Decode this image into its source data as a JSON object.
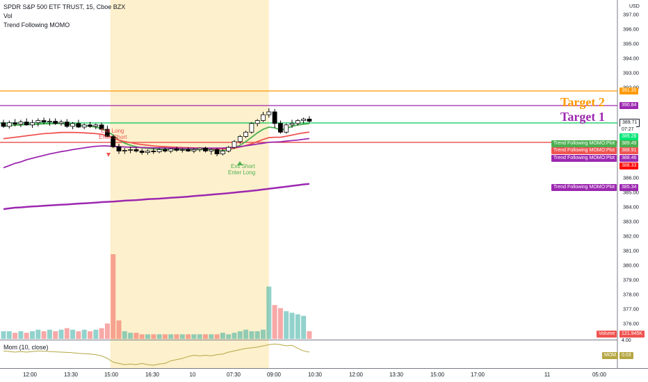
{
  "header": {
    "title": "SPDR S&P 500 ETF TRUST, 15, Cboe BZX",
    "vol": "Vol",
    "indicator": "Trend Following MOMO"
  },
  "mom_panel": {
    "label": "Mom (10, close)"
  },
  "currency": "USD",
  "targets": {
    "target2": "Target 2",
    "target1": "Target 1"
  },
  "annotations": {
    "exit_long": "Exit Long",
    "enter_short": "Enter Short",
    "exit_short": "Exit Short",
    "enter_long": "Enter Long"
  },
  "x_labels": [
    "12:00",
    "13:30",
    "15:00",
    "16:30",
    "10",
    "07:30",
    "09:00",
    "10:30",
    "12:00",
    "13:30",
    "15:00",
    "17:00",
    "11",
    "05:00"
  ],
  "y_labels": [
    "397.00",
    "396.00",
    "395.00",
    "394.00",
    "393.00",
    "392.00",
    "386.00",
    "385.00",
    "384.00",
    "383.00",
    "382.00",
    "381.00",
    "380.00",
    "379.00",
    "378.00",
    "377.00",
    "376.00"
  ],
  "price_tags": {
    "orange_line": "391.35",
    "purple_line": "390.84",
    "current": "389.71",
    "countdown": "07:27",
    "green_level": "389.28",
    "red_line": "388.33",
    "mom_lower": "4.00"
  },
  "plot_tags": [
    {
      "label": "Trend Following MOMO:Plot",
      "value": "389.49",
      "color": "#4caf50"
    },
    {
      "label": "Trend Following MOMO:Plot",
      "value": "388.91",
      "color": "#ef5350"
    },
    {
      "label": "Trend Following MOMO:Plot",
      "value": "388.46",
      "color": "#9c27b0"
    },
    {
      "label": "Trend Following MOMO:Plot",
      "value": "385.34",
      "color": "#9c27b0"
    }
  ],
  "volume_tag": {
    "label": "Volume",
    "value": "121.945K"
  },
  "mom_tag": {
    "label": "MOM",
    "value": "0.03"
  },
  "colors": {
    "up": "#26a69a",
    "down": "#ef5350",
    "session_bg": "#fdf0cc",
    "green_line": "#4caf50",
    "red_line": "#ef5350",
    "purple_line": "#9c27b0",
    "orange_line": "#ff9800",
    "mom_line": "#b5a642"
  },
  "chart_data": {
    "type": "candlestick",
    "title": "SPDR S&P 500 ETF TRUST, 15, Cboe BZX",
    "ylim": [
      375.6,
      397.6
    ],
    "y_ticks": [
      397,
      396,
      395,
      394,
      393,
      392,
      386,
      385,
      384,
      383,
      382,
      381,
      380,
      379,
      378,
      377,
      376
    ],
    "session_highlight": {
      "from_bar": 19,
      "to_bar": 46
    },
    "candles": [
      {
        "o": 389.55,
        "h": 389.75,
        "l": 389.2,
        "c": 389.3
      },
      {
        "o": 389.3,
        "h": 389.7,
        "l": 389.15,
        "c": 389.55
      },
      {
        "o": 389.55,
        "h": 389.8,
        "l": 389.3,
        "c": 389.45
      },
      {
        "o": 389.45,
        "h": 389.75,
        "l": 389.25,
        "c": 389.6
      },
      {
        "o": 389.6,
        "h": 389.85,
        "l": 389.35,
        "c": 389.4
      },
      {
        "o": 389.4,
        "h": 389.75,
        "l": 389.2,
        "c": 389.55
      },
      {
        "o": 389.55,
        "h": 389.85,
        "l": 389.3,
        "c": 389.7
      },
      {
        "o": 389.7,
        "h": 389.9,
        "l": 389.45,
        "c": 389.6
      },
      {
        "o": 389.6,
        "h": 389.85,
        "l": 389.35,
        "c": 389.65
      },
      {
        "o": 389.65,
        "h": 389.85,
        "l": 389.4,
        "c": 389.5
      },
      {
        "o": 389.5,
        "h": 389.75,
        "l": 389.35,
        "c": 389.6
      },
      {
        "o": 389.6,
        "h": 389.8,
        "l": 389.2,
        "c": 389.3
      },
      {
        "o": 389.3,
        "h": 389.6,
        "l": 389.1,
        "c": 389.5
      },
      {
        "o": 389.5,
        "h": 389.75,
        "l": 389.2,
        "c": 389.25
      },
      {
        "o": 389.25,
        "h": 389.5,
        "l": 389.1,
        "c": 389.4
      },
      {
        "o": 389.4,
        "h": 389.6,
        "l": 389.2,
        "c": 389.3
      },
      {
        "o": 389.3,
        "h": 389.5,
        "l": 389.1,
        "c": 389.4
      },
      {
        "o": 389.4,
        "h": 389.55,
        "l": 389.0,
        "c": 389.1
      },
      {
        "o": 389.1,
        "h": 389.35,
        "l": 388.55,
        "c": 388.6
      },
      {
        "o": 388.6,
        "h": 388.7,
        "l": 387.8,
        "c": 387.9
      },
      {
        "o": 387.9,
        "h": 388.1,
        "l": 387.4,
        "c": 387.6
      },
      {
        "o": 387.6,
        "h": 387.8,
        "l": 387.4,
        "c": 387.65
      },
      {
        "o": 387.65,
        "h": 387.9,
        "l": 387.45,
        "c": 387.7
      },
      {
        "o": 387.7,
        "h": 387.85,
        "l": 387.5,
        "c": 387.6
      },
      {
        "o": 387.6,
        "h": 387.75,
        "l": 387.35,
        "c": 387.5
      },
      {
        "o": 387.5,
        "h": 387.7,
        "l": 387.35,
        "c": 387.6
      },
      {
        "o": 387.6,
        "h": 387.8,
        "l": 387.4,
        "c": 387.55
      },
      {
        "o": 387.55,
        "h": 387.8,
        "l": 387.45,
        "c": 387.7
      },
      {
        "o": 387.7,
        "h": 387.85,
        "l": 387.5,
        "c": 387.6
      },
      {
        "o": 387.6,
        "h": 387.8,
        "l": 387.45,
        "c": 387.75
      },
      {
        "o": 387.75,
        "h": 387.9,
        "l": 387.55,
        "c": 387.65
      },
      {
        "o": 387.65,
        "h": 387.8,
        "l": 387.5,
        "c": 387.7
      },
      {
        "o": 387.7,
        "h": 387.85,
        "l": 387.55,
        "c": 387.6
      },
      {
        "o": 387.6,
        "h": 387.8,
        "l": 387.45,
        "c": 387.7
      },
      {
        "o": 387.7,
        "h": 387.85,
        "l": 387.55,
        "c": 387.8
      },
      {
        "o": 387.8,
        "h": 387.9,
        "l": 387.5,
        "c": 387.6
      },
      {
        "o": 387.6,
        "h": 387.75,
        "l": 387.35,
        "c": 387.7
      },
      {
        "o": 387.7,
        "h": 387.8,
        "l": 387.25,
        "c": 387.4
      },
      {
        "o": 387.4,
        "h": 387.75,
        "l": 387.3,
        "c": 387.6
      },
      {
        "o": 387.6,
        "h": 387.95,
        "l": 387.5,
        "c": 387.85
      },
      {
        "o": 387.85,
        "h": 388.35,
        "l": 387.75,
        "c": 388.25
      },
      {
        "o": 388.25,
        "h": 388.7,
        "l": 388.1,
        "c": 388.6
      },
      {
        "o": 388.6,
        "h": 389.0,
        "l": 388.5,
        "c": 388.9
      },
      {
        "o": 388.9,
        "h": 389.6,
        "l": 388.8,
        "c": 389.5
      },
      {
        "o": 389.5,
        "h": 389.8,
        "l": 389.3,
        "c": 389.7
      },
      {
        "o": 389.7,
        "h": 390.3,
        "l": 389.6,
        "c": 390.1
      },
      {
        "o": 390.1,
        "h": 390.55,
        "l": 389.9,
        "c": 390.3
      },
      {
        "o": 390.3,
        "h": 390.5,
        "l": 389.2,
        "c": 389.5
      },
      {
        "o": 389.5,
        "h": 389.7,
        "l": 388.8,
        "c": 388.9
      },
      {
        "o": 388.9,
        "h": 389.5,
        "l": 388.8,
        "c": 389.4
      },
      {
        "o": 389.4,
        "h": 389.75,
        "l": 389.2,
        "c": 389.5
      },
      {
        "o": 389.5,
        "h": 389.8,
        "l": 389.35,
        "c": 389.7
      },
      {
        "o": 389.7,
        "h": 389.9,
        "l": 389.5,
        "c": 389.8
      },
      {
        "o": 389.8,
        "h": 390.0,
        "l": 389.55,
        "c": 389.65
      }
    ],
    "volume": [
      5,
      5,
      4,
      5,
      4,
      5,
      6,
      5,
      6,
      5,
      6,
      7,
      6,
      5,
      6,
      5,
      6,
      7,
      10,
      55,
      12,
      5,
      4,
      4,
      3,
      3,
      3,
      3,
      3,
      3,
      3,
      3,
      3,
      3,
      3,
      3,
      3,
      3,
      4,
      3,
      4,
      5,
      6,
      5,
      5,
      6,
      34,
      22,
      20,
      18,
      17,
      16,
      15,
      5
    ],
    "volume_up": [
      true,
      true,
      false,
      true,
      false,
      true,
      true,
      false,
      true,
      false,
      true,
      false,
      true,
      false,
      true,
      false,
      true,
      false,
      false,
      false,
      false,
      true,
      true,
      false,
      false,
      true,
      false,
      true,
      false,
      true,
      false,
      true,
      false,
      true,
      true,
      false,
      true,
      false,
      true,
      true,
      true,
      true,
      true,
      true,
      true,
      true,
      true,
      false,
      false,
      true,
      true,
      true,
      true,
      false
    ],
    "series": [
      {
        "color": "#4caf50",
        "values": [
          389.3,
          389.35,
          389.38,
          389.4,
          389.42,
          389.42,
          389.45,
          389.48,
          389.48,
          389.5,
          389.5,
          389.45,
          389.42,
          389.38,
          389.35,
          389.3,
          389.25,
          389.15,
          388.95,
          388.7,
          388.35,
          388.15,
          388.0,
          387.9,
          387.82,
          387.78,
          387.75,
          387.73,
          387.72,
          387.72,
          387.71,
          387.71,
          387.7,
          387.7,
          387.7,
          387.7,
          387.7,
          387.65,
          387.62,
          387.68,
          387.8,
          388.0,
          388.25,
          388.55,
          388.85,
          389.1,
          389.25,
          389.2,
          389.05,
          389.15,
          389.3,
          389.4,
          389.45,
          389.49
        ]
      },
      {
        "color": "#ef5350",
        "values": [
          388.45,
          388.5,
          388.55,
          388.6,
          388.65,
          388.7,
          388.75,
          388.8,
          388.82,
          388.85,
          388.88,
          388.88,
          388.88,
          388.87,
          388.85,
          388.83,
          388.8,
          388.75,
          388.65,
          388.5,
          388.35,
          388.25,
          388.18,
          388.1,
          388.05,
          388.0,
          387.95,
          387.92,
          387.9,
          387.88,
          387.86,
          387.84,
          387.83,
          387.82,
          387.81,
          387.8,
          387.78,
          387.76,
          387.75,
          387.76,
          387.8,
          387.88,
          387.98,
          388.1,
          388.25,
          388.4,
          388.52,
          388.55,
          388.55,
          388.62,
          388.7,
          388.78,
          388.85,
          388.91
        ]
      },
      {
        "color": "#9c27b0",
        "values": [
          386.45,
          386.6,
          386.75,
          386.85,
          387.0,
          387.1,
          387.2,
          387.3,
          387.4,
          387.48,
          387.56,
          387.62,
          387.7,
          387.76,
          387.82,
          387.88,
          387.93,
          387.95,
          387.95,
          387.92,
          387.9,
          387.88,
          387.86,
          387.85,
          387.84,
          387.83,
          387.82,
          387.82,
          387.81,
          387.8,
          387.8,
          387.79,
          387.79,
          387.79,
          387.79,
          387.8,
          387.8,
          387.8,
          387.81,
          387.83,
          387.86,
          387.9,
          387.96,
          388.02,
          388.08,
          388.14,
          388.2,
          388.22,
          388.24,
          388.28,
          388.32,
          388.36,
          388.41,
          388.46
        ]
      },
      {
        "color": "#9c27b0",
        "values": [
          383.6,
          383.65,
          383.7,
          383.72,
          383.75,
          383.78,
          383.8,
          383.83,
          383.85,
          383.88,
          383.9,
          383.92,
          383.95,
          383.98,
          384.0,
          384.02,
          384.05,
          384.08,
          384.1,
          384.12,
          384.15,
          384.18,
          384.2,
          384.22,
          384.25,
          384.28,
          384.3,
          384.32,
          384.35,
          384.38,
          384.4,
          384.43,
          384.46,
          384.5,
          384.53,
          384.56,
          384.6,
          384.63,
          384.66,
          384.7,
          384.74,
          384.78,
          384.82,
          384.86,
          384.9,
          384.95,
          385.0,
          385.05,
          385.1,
          385.15,
          385.2,
          385.25,
          385.3,
          385.34
        ]
      }
    ],
    "mom_values": [
      1,
      0.5,
      0,
      0.5,
      0,
      0.5,
      1,
      0.8,
      0.5,
      0.2,
      0,
      -0.2,
      -0.5,
      -1,
      -1.2,
      -1.5,
      -2,
      -3,
      -5,
      -8,
      -9,
      -10,
      -9.5,
      -10,
      -9,
      -10,
      -10.5,
      -9.5,
      -9,
      -7,
      -6,
      -5,
      -3.5,
      -2.5,
      -3,
      -2.5,
      -3,
      -2,
      -1.5,
      0,
      1,
      2,
      3,
      3.5,
      4,
      5,
      6,
      6.5,
      6,
      5,
      5.5,
      3,
      1,
      0
    ]
  }
}
